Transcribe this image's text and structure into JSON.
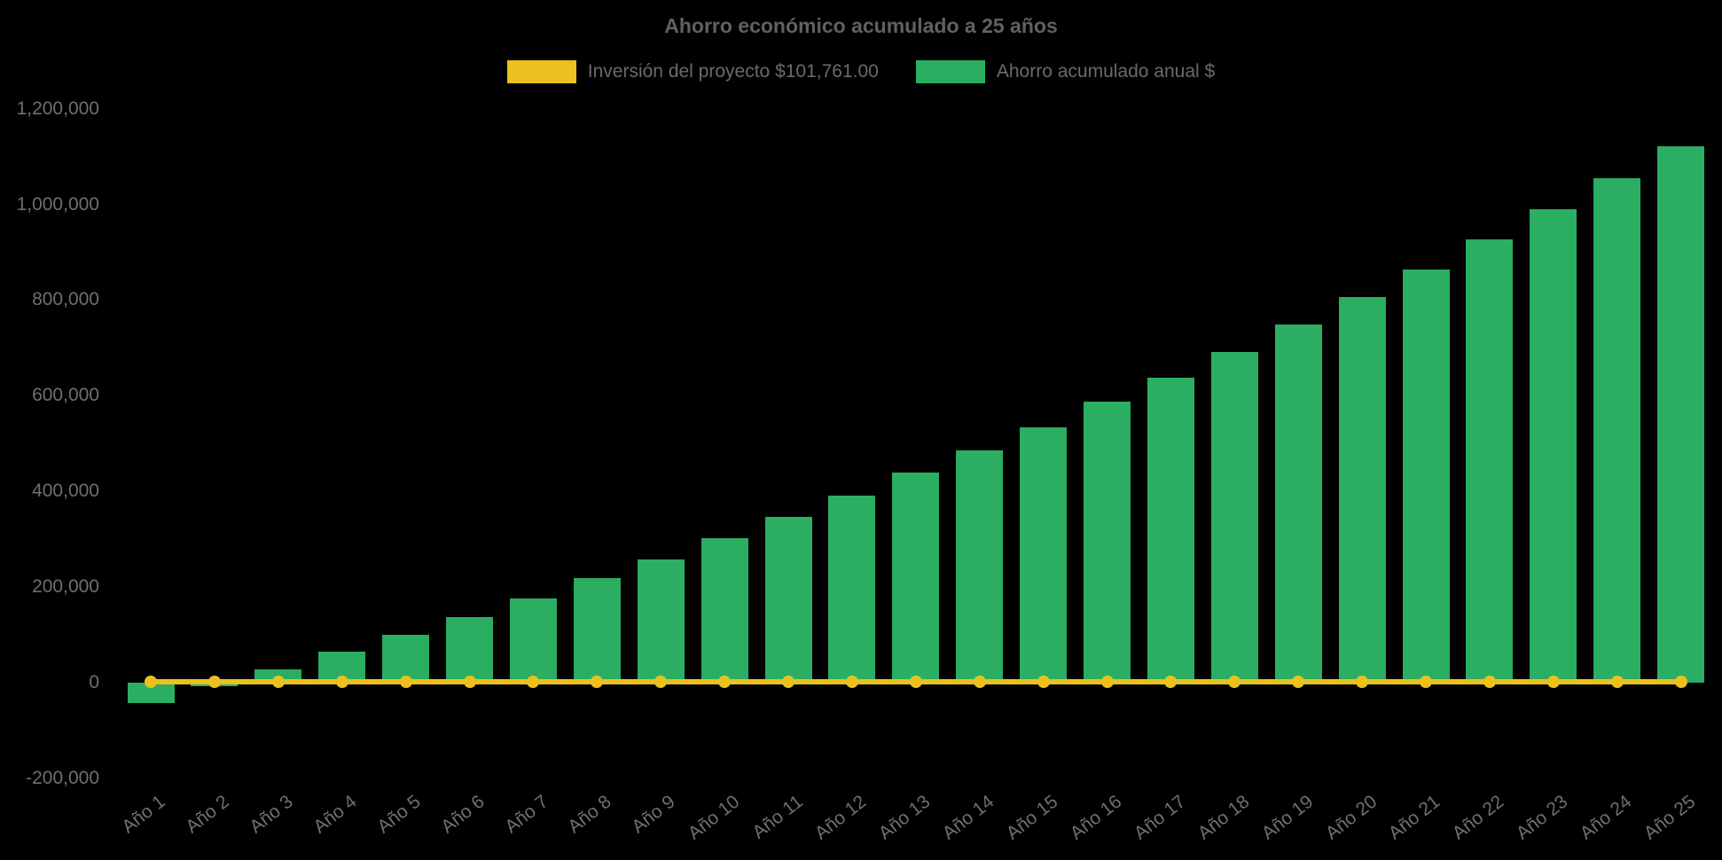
{
  "chart": {
    "title": "Ahorro económico acumulado a 25 años",
    "legend": [
      {
        "label": "Inversión del proyecto $101,761.00",
        "color": "#eac11e"
      },
      {
        "label": "Ahorro acumulado anual $",
        "color": "#2bad62"
      }
    ],
    "background_color": "#000000",
    "text_color": "#6f6f6f"
  },
  "chart_data": {
    "type": "bar",
    "title": "Ahorro económico acumulado a 25 años",
    "categories": [
      "Año 1",
      "Año 2",
      "Año 3",
      "Año 4",
      "Año 5",
      "Año 6",
      "Año 7",
      "Año 8",
      "Año 9",
      "Año 10",
      "Año 11",
      "Año 12",
      "Año 13",
      "Año 14",
      "Año 15",
      "Año 16",
      "Año 17",
      "Año 18",
      "Año 19",
      "Año 20",
      "Año 21",
      "Año 22",
      "Año 23",
      "Año 24",
      "Año 25"
    ],
    "series": [
      {
        "name": "Inversión del proyecto $101,761.00",
        "type": "line",
        "color": "#eac11e",
        "point_style": "circle",
        "values": [
          0,
          0,
          0,
          0,
          0,
          0,
          0,
          0,
          0,
          0,
          0,
          0,
          0,
          0,
          0,
          0,
          0,
          0,
          0,
          0,
          0,
          0,
          0,
          0,
          0
        ]
      },
      {
        "name": "Ahorro acumulado anual $",
        "type": "bar",
        "color": "#2bad62",
        "values": [
          -42000,
          -8000,
          28000,
          65000,
          101000,
          138000,
          177000,
          219000,
          258000,
          303000,
          346000,
          391000,
          439000,
          485000,
          534000,
          587000,
          638000,
          692000,
          749000,
          806000,
          864000,
          926000,
          989000,
          1055000,
          1122000
        ]
      }
    ],
    "xlabel": "",
    "ylabel": "",
    "ylim": [
      -200000,
      1200000
    ],
    "yticks": {
      "values": [
        1200000,
        1000000,
        800000,
        600000,
        400000,
        200000,
        0,
        -200000
      ],
      "labels": [
        "1,200,000",
        "1,000,000",
        "800,000",
        "600,000",
        "400,000",
        "200,000",
        "0",
        "-200,000"
      ]
    },
    "grid": false,
    "legend_position": "top"
  }
}
